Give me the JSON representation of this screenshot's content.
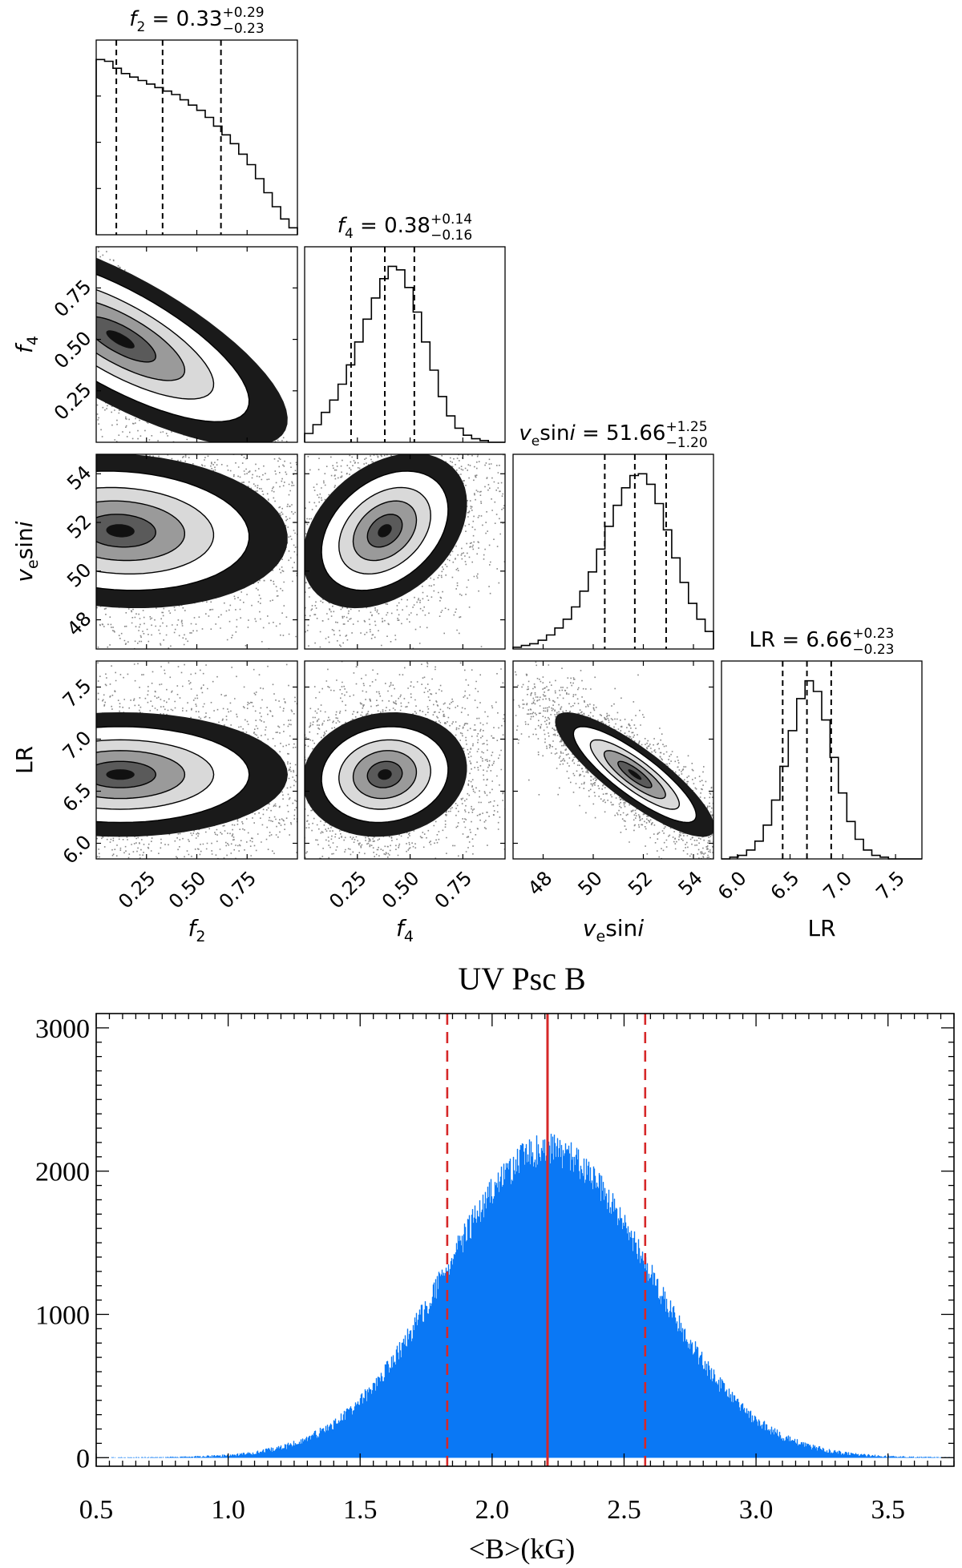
{
  "chart_data": [
    {
      "type": "corner",
      "parameters": [
        {
          "key": "f2",
          "label": "f",
          "sub": "2",
          "italic_sub": false,
          "title_value": "0.33",
          "title_plus": "+0.29",
          "title_minus": "−0.23",
          "range": [
            0.0,
            1.0
          ],
          "median": 0.33,
          "q16": 0.1,
          "q84": 0.62,
          "ticks": [
            "0.25",
            "0.50",
            "0.75"
          ],
          "tick_values": [
            0.25,
            0.5,
            0.75
          ]
        },
        {
          "key": "f4",
          "label": "f",
          "sub": "4",
          "italic_sub": false,
          "title_value": "0.38",
          "title_plus": "+0.14",
          "title_minus": "−0.16",
          "range": [
            0.0,
            0.95
          ],
          "median": 0.38,
          "q16": 0.22,
          "q84": 0.52,
          "ticks": [
            "0.25",
            "0.50",
            "0.75"
          ],
          "tick_values": [
            0.25,
            0.5,
            0.75
          ]
        },
        {
          "key": "vsini",
          "label": "v",
          "sub": "e",
          "suffix": "sin",
          "suffix_i": "i",
          "title_value": "51.66",
          "title_plus": "+1.25",
          "title_minus": "−1.20",
          "range": [
            46.8,
            54.8
          ],
          "median": 51.66,
          "q16": 50.46,
          "q84": 52.91,
          "ticks": [
            "48",
            "50",
            "52",
            "54"
          ],
          "tick_values": [
            48,
            50,
            52,
            54
          ]
        },
        {
          "key": "LR",
          "label": "LR",
          "title_value": "6.66",
          "title_plus": "+0.23",
          "title_minus": "−0.23",
          "range": [
            5.85,
            7.75
          ],
          "median": 6.66,
          "q16": 6.43,
          "q84": 6.89,
          "ticks": [
            "6.0",
            "6.5",
            "7.0",
            "7.5"
          ],
          "tick_values": [
            6.0,
            6.5,
            7.0,
            7.5
          ]
        }
      ],
      "hist_f2": [
        1.0,
        0.99,
        0.95,
        0.92,
        0.9,
        0.88,
        0.86,
        0.84,
        0.82,
        0.8,
        0.77,
        0.74,
        0.71,
        0.67,
        0.62,
        0.57,
        0.52,
        0.46,
        0.4,
        0.32,
        0.24,
        0.16,
        0.09,
        0.04
      ],
      "hist_f4": [
        0.05,
        0.1,
        0.17,
        0.24,
        0.33,
        0.44,
        0.57,
        0.7,
        0.82,
        0.93,
        1.0,
        0.98,
        0.88,
        0.74,
        0.57,
        0.41,
        0.26,
        0.15,
        0.08,
        0.04,
        0.02,
        0.01,
        0.0,
        0.0
      ],
      "hist_vsini": [
        0.01,
        0.02,
        0.03,
        0.05,
        0.08,
        0.12,
        0.17,
        0.24,
        0.33,
        0.44,
        0.57,
        0.7,
        0.82,
        0.92,
        0.99,
        1.0,
        0.94,
        0.83,
        0.68,
        0.52,
        0.38,
        0.26,
        0.17,
        0.1
      ],
      "hist_LR": [
        0.0,
        0.01,
        0.02,
        0.05,
        0.1,
        0.19,
        0.33,
        0.52,
        0.72,
        0.9,
        1.0,
        0.94,
        0.78,
        0.57,
        0.37,
        0.21,
        0.11,
        0.05,
        0.02,
        0.01,
        0.0,
        0.0,
        0.0,
        0.0
      ],
      "correlations": {
        "f2_f4": -0.75,
        "f2_vsini": -0.1,
        "f4_vsini": 0.35,
        "f2_LR": 0.0,
        "f4_LR": 0.1,
        "vsini_LR": -0.85
      },
      "axis_labels": [
        "f2",
        "f4",
        "vesini",
        "LR"
      ]
    },
    {
      "type": "bar",
      "title": "UV Psc B",
      "xlabel": "<B>(kG)",
      "ylabel": "",
      "xlim": [
        0.5,
        3.75
      ],
      "ylim": [
        -60,
        3100
      ],
      "xticks": [
        "0.5",
        "1.0",
        "1.5",
        "2.0",
        "2.5",
        "3.0",
        "3.5"
      ],
      "xtick_values": [
        0.5,
        1.0,
        1.5,
        2.0,
        2.5,
        3.0,
        3.5
      ],
      "yticks": [
        "0",
        "1000",
        "2000",
        "3000"
      ],
      "ytick_values": [
        0,
        1000,
        2000,
        3000
      ],
      "peak_center": 2.21,
      "peak_height": 2150,
      "peak_sigma": 0.385,
      "median": 2.21,
      "lower": 1.83,
      "upper": 2.58,
      "bar_color": "#0a7af5",
      "line_color": "#d62728"
    }
  ]
}
